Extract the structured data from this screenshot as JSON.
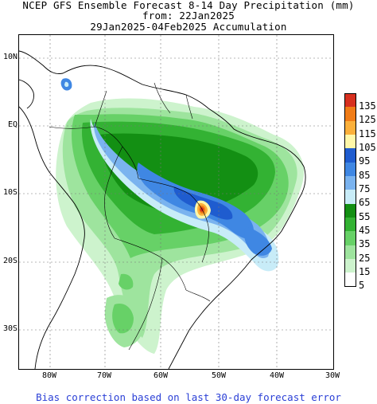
{
  "title": {
    "line1": "NCEP GFS Ensemble Forecast 8-14 Day Precipitation (mm)",
    "line2": "from: 22Jan2025",
    "line3": "29Jan2025-04Feb2025 Accumulation"
  },
  "map": {
    "lat_labels": [
      "10N",
      "EQ",
      "10S",
      "20S",
      "30S"
    ],
    "lon_labels": [
      "80W",
      "70W",
      "60W",
      "50W",
      "40W",
      "30W"
    ],
    "grid": true
  },
  "legend": {
    "labels": [
      "135",
      "125",
      "115",
      "105",
      "95",
      "85",
      "75",
      "65",
      "55",
      "45",
      "35",
      "25",
      "15",
      "5"
    ],
    "colors": [
      "#d7301f",
      "#f07c17",
      "#fbb03b",
      "#fff7a8",
      "#1f5ccf",
      "#3f87e3",
      "#7ab3ef",
      "#c8ecf8",
      "#138f13",
      "#33b233",
      "#67d167",
      "#9ee49e",
      "#cdf3cd",
      "#ffffff"
    ]
  },
  "footer": "Bias correction based on last 30-day forecast error"
}
